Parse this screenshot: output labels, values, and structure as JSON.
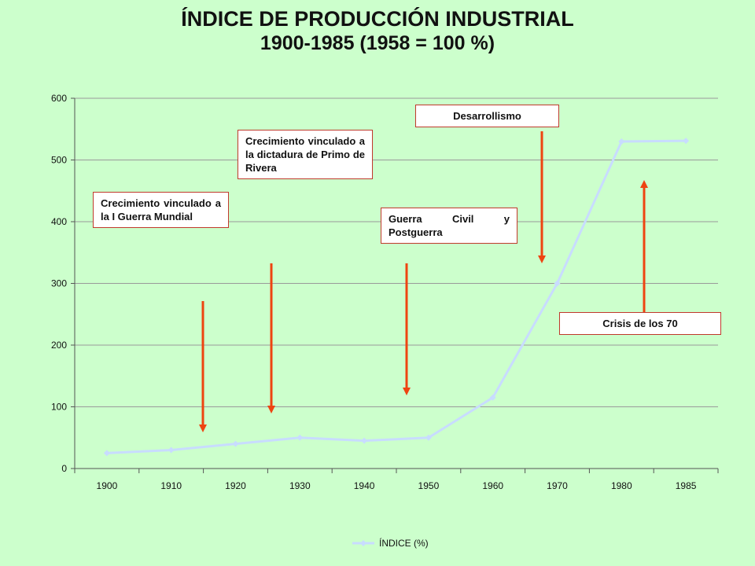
{
  "title": {
    "line1": "ÍNDICE DE PRODUCCIÓN INDUSTRIAL",
    "line2": "1900-1985 (1958 = 100 %)"
  },
  "chart_data": {
    "type": "line",
    "categories": [
      "1900",
      "1910",
      "1920",
      "1930",
      "1940",
      "1950",
      "1960",
      "1970",
      "1980",
      "1985"
    ],
    "series": [
      {
        "name": "ÍNDICE (%)",
        "values": [
          25,
          30,
          40,
          50,
          45,
          50,
          115,
          300,
          530,
          531
        ]
      }
    ],
    "ylim": [
      0,
      600
    ],
    "yticks": [
      0,
      100,
      200,
      300,
      400,
      500,
      600
    ],
    "grid": true,
    "legend": "bottom",
    "line_color": "#c8dcff",
    "annotation_color": "#ee4411",
    "annotations": [
      {
        "text": "Crecimiento vinculado a la I Guerra Mundial",
        "arrow": "down"
      },
      {
        "text": "Crecimiento vinculado a la dictadura de Primo de Rivera",
        "arrow": "down"
      },
      {
        "text": "Guerra Civil y Postguerra",
        "arrow": "down"
      },
      {
        "text": "Desarrollismo",
        "arrow": "down"
      },
      {
        "text": "Crisis de los 70",
        "arrow": "up"
      }
    ]
  }
}
